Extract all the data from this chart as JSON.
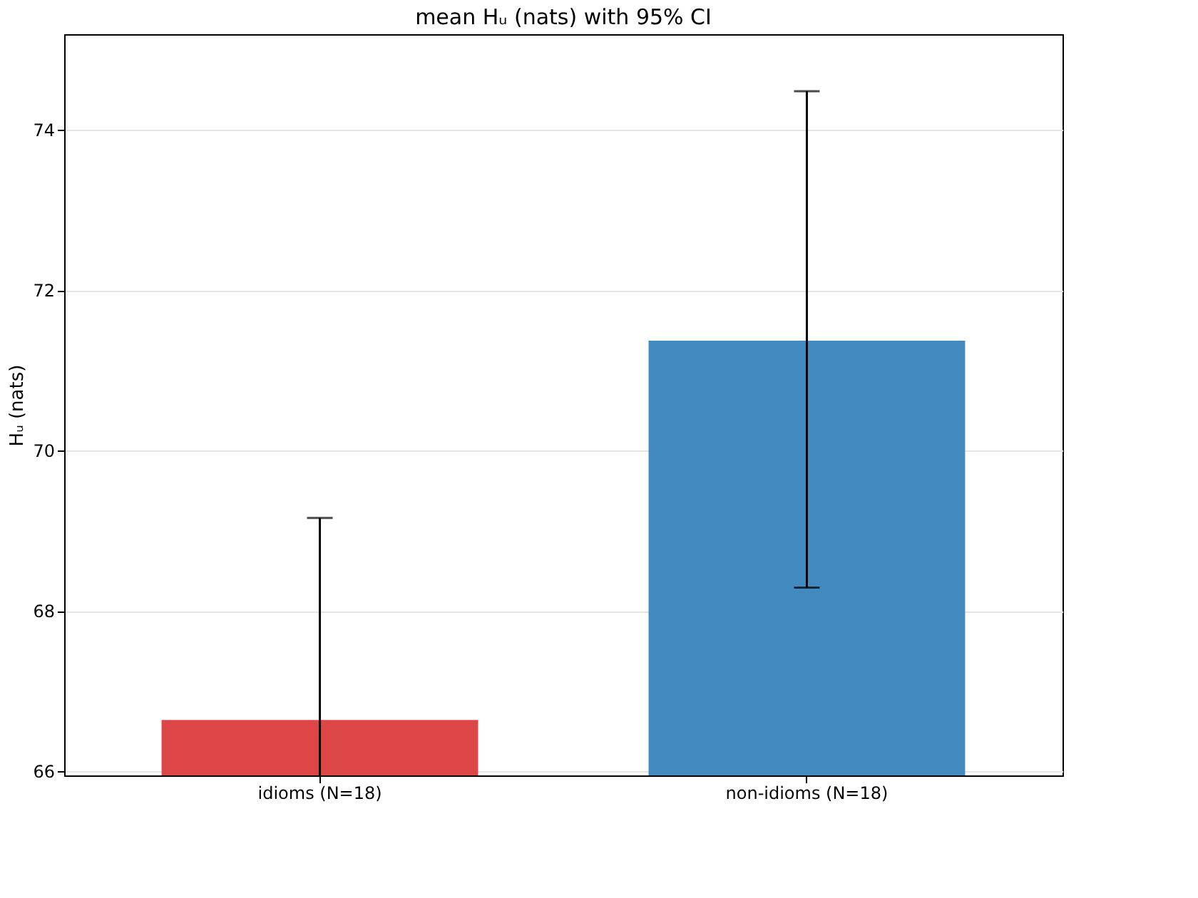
{
  "chart_data": {
    "type": "bar",
    "title": "mean Hᵤ (nats) with 95% CI",
    "ylabel": "Hᵤ (nats)",
    "categories": [
      "idioms (N=18)",
      "non-idioms (N=18)"
    ],
    "values": [
      66.64,
      71.37
    ],
    "colors": [
      "#dd4646",
      "#428abf"
    ],
    "errors": [
      2.52,
      [
        68.29,
        74.48
      ]
    ],
    "ylim": [
      65.95,
      75.19
    ],
    "yticks": [
      66,
      68,
      70,
      72,
      74
    ],
    "grid": "y"
  }
}
